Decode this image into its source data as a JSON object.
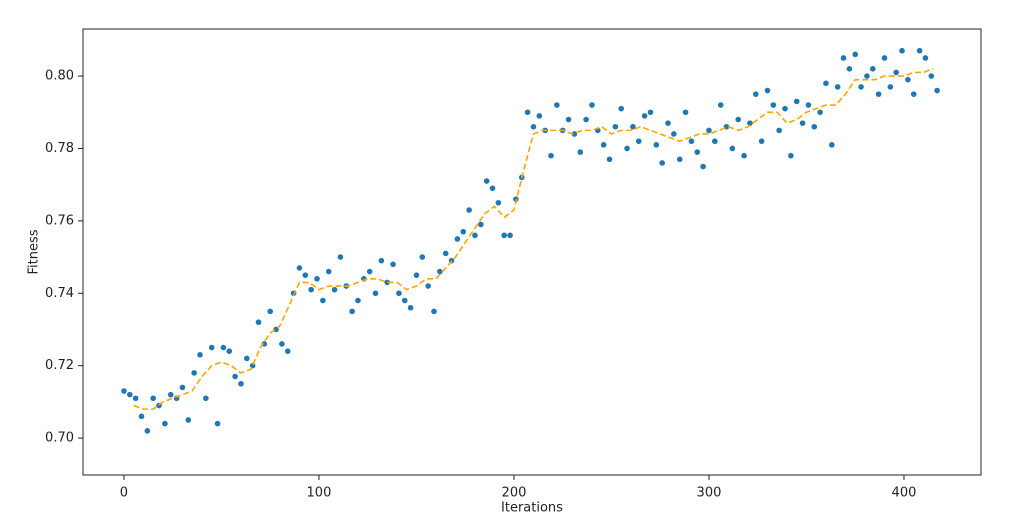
{
  "chart_data": {
    "type": "scatter",
    "xlabel": "Iterations",
    "ylabel": "Fitness",
    "xlim": [
      -21,
      439.5
    ],
    "ylim": [
      0.6898,
      0.813
    ],
    "xticks": [
      0,
      100,
      200,
      300,
      400
    ],
    "yticks": [
      {
        "value": 0.7,
        "label": "0.70"
      },
      0.72,
      0.74,
      0.76,
      0.78,
      {
        "value": 0.8,
        "label": "0.80"
      }
    ],
    "grid": false,
    "series": [
      {
        "type": "scatter",
        "color": "#1f77b4",
        "x": [
          0,
          3,
          6,
          9,
          12,
          15,
          18,
          21,
          24,
          27,
          30,
          33,
          36,
          39,
          42,
          45,
          48,
          51,
          54,
          57,
          60,
          63,
          66,
          69,
          72,
          75,
          78,
          81,
          84,
          87,
          90,
          93,
          96,
          99,
          102,
          105,
          108,
          111,
          114,
          117,
          120,
          123,
          126,
          129,
          132,
          135,
          138,
          141,
          144,
          147,
          150,
          153,
          156,
          159,
          162,
          165,
          168,
          171,
          174,
          177,
          180,
          183,
          186,
          189,
          192,
          195,
          198,
          201,
          204,
          207,
          210,
          213,
          216,
          219,
          222,
          225,
          228,
          231,
          234,
          237,
          240,
          243,
          246,
          249,
          252,
          255,
          258,
          261,
          264,
          267,
          270,
          273,
          276,
          279,
          282,
          285,
          288,
          291,
          294,
          297,
          300,
          303,
          306,
          309,
          312,
          315,
          318,
          321,
          324,
          327,
          330,
          333,
          336,
          339,
          342,
          345,
          348,
          351,
          354,
          357,
          360,
          363,
          366,
          369,
          372,
          375,
          378,
          381,
          384,
          387,
          390,
          393,
          396,
          399,
          402,
          405,
          408,
          411,
          414,
          417
        ],
        "values": [
          0.713,
          0.712,
          0.711,
          0.706,
          0.702,
          0.711,
          0.709,
          0.704,
          0.712,
          0.711,
          0.714,
          0.705,
          0.718,
          0.723,
          0.711,
          0.725,
          0.704,
          0.725,
          0.724,
          0.717,
          0.715,
          0.722,
          0.72,
          0.732,
          0.726,
          0.735,
          0.73,
          0.726,
          0.724,
          0.74,
          0.747,
          0.745,
          0.741,
          0.744,
          0.738,
          0.746,
          0.741,
          0.75,
          0.742,
          0.735,
          0.738,
          0.744,
          0.746,
          0.74,
          0.749,
          0.743,
          0.748,
          0.74,
          0.738,
          0.736,
          0.745,
          0.75,
          0.742,
          0.735,
          0.746,
          0.751,
          0.749,
          0.755,
          0.757,
          0.763,
          0.756,
          0.759,
          0.771,
          0.769,
          0.765,
          0.756,
          0.756,
          0.766,
          0.772,
          0.79,
          0.786,
          0.789,
          0.785,
          0.778,
          0.792,
          0.785,
          0.788,
          0.784,
          0.779,
          0.788,
          0.792,
          0.785,
          0.781,
          0.777,
          0.786,
          0.791,
          0.78,
          0.786,
          0.782,
          0.789,
          0.79,
          0.781,
          0.776,
          0.787,
          0.784,
          0.777,
          0.79,
          0.782,
          0.779,
          0.775,
          0.785,
          0.782,
          0.792,
          0.786,
          0.78,
          0.788,
          0.778,
          0.787,
          0.795,
          0.782,
          0.796,
          0.792,
          0.785,
          0.791,
          0.778,
          0.793,
          0.787,
          0.792,
          0.786,
          0.79,
          0.798,
          0.781,
          0.797,
          0.805,
          0.802,
          0.806,
          0.797,
          0.8,
          0.802,
          0.795,
          0.805,
          0.797,
          0.801,
          0.807,
          0.799,
          0.795,
          0.807,
          0.805,
          0.8,
          0.796
        ]
      },
      {
        "type": "line",
        "color": "#ffa500",
        "linestyle": "dashed",
        "x": [
          5,
          10,
          15,
          20,
          25,
          30,
          35,
          40,
          45,
          50,
          55,
          60,
          65,
          70,
          75,
          80,
          85,
          90,
          95,
          100,
          105,
          110,
          115,
          120,
          125,
          130,
          135,
          140,
          145,
          150,
          155,
          160,
          165,
          170,
          175,
          180,
          185,
          190,
          195,
          200,
          205,
          210,
          215,
          220,
          225,
          230,
          235,
          240,
          245,
          250,
          255,
          260,
          265,
          270,
          275,
          280,
          285,
          290,
          295,
          300,
          305,
          310,
          315,
          320,
          325,
          330,
          335,
          340,
          345,
          350,
          355,
          360,
          365,
          370,
          375,
          380,
          385,
          390,
          395,
          400,
          405,
          410,
          415
        ],
        "values": [
          0.709,
          0.708,
          0.708,
          0.71,
          0.711,
          0.712,
          0.713,
          0.717,
          0.72,
          0.721,
          0.72,
          0.718,
          0.719,
          0.725,
          0.729,
          0.731,
          0.737,
          0.743,
          0.743,
          0.741,
          0.742,
          0.742,
          0.742,
          0.743,
          0.744,
          0.744,
          0.743,
          0.743,
          0.741,
          0.742,
          0.744,
          0.744,
          0.747,
          0.75,
          0.754,
          0.758,
          0.762,
          0.764,
          0.761,
          0.763,
          0.774,
          0.784,
          0.785,
          0.785,
          0.785,
          0.784,
          0.785,
          0.785,
          0.786,
          0.784,
          0.785,
          0.785,
          0.786,
          0.785,
          0.784,
          0.783,
          0.782,
          0.783,
          0.784,
          0.784,
          0.785,
          0.786,
          0.785,
          0.786,
          0.788,
          0.79,
          0.79,
          0.787,
          0.788,
          0.79,
          0.791,
          0.792,
          0.792,
          0.795,
          0.799,
          0.799,
          0.799,
          0.8,
          0.8,
          0.8,
          0.801,
          0.801,
          0.802
        ]
      }
    ]
  }
}
